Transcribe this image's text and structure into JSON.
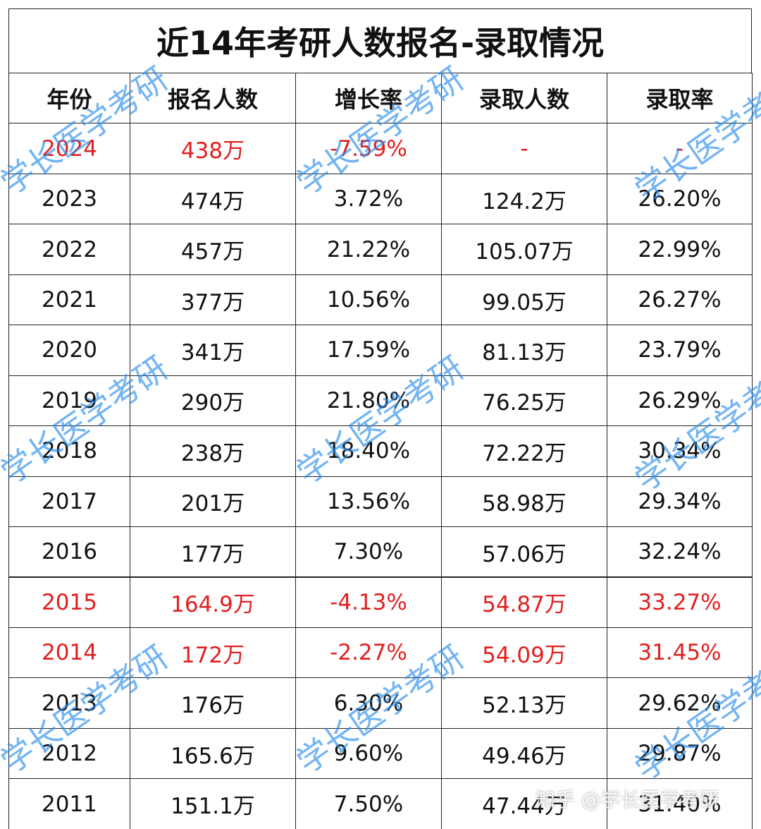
{
  "title": "近14年考研人数报名-录取情况",
  "table": {
    "header": [
      "年份",
      "报名人数",
      "增长率",
      "录取人数",
      "录取率"
    ],
    "rows": [
      [
        "2024",
        "438万",
        "-7.59%",
        "-",
        "-"
      ],
      [
        "2023",
        "474万",
        "3.72%",
        "124.2万",
        "26.20%"
      ],
      [
        "2022",
        "457万",
        "21.22%",
        "105.07万",
        "22.99%"
      ],
      [
        "2021",
        "377万",
        "10.56%",
        "99.05万",
        "26.27%"
      ],
      [
        "2020",
        "341万",
        "17.59%",
        "81.13万",
        "23.79%"
      ],
      [
        "2019",
        "290万",
        "21.80%",
        "76.25万",
        "26.29%"
      ],
      [
        "2018",
        "238万",
        "18.40%",
        "72.22万",
        "30.34%"
      ],
      [
        "2017",
        "201万",
        "13.56%",
        "58.98万",
        "29.34%"
      ],
      [
        "2016",
        "177万",
        "7.30%",
        "57.06万",
        "32.24%"
      ],
      [
        "2015",
        "164.9万",
        "-4.13%",
        "54.87万",
        "33.27%"
      ],
      [
        "2014",
        "172万",
        "-2.27%",
        "54.09万",
        "31.45%"
      ],
      [
        "2013",
        "176万",
        "6.30%",
        "52.13万",
        "29.62%"
      ],
      [
        "2012",
        "165.6万",
        "9.60%",
        "49.46万",
        "29.87%"
      ],
      [
        "2011",
        "151.1万",
        "7.50%",
        "47.44万",
        "31.40%"
      ]
    ],
    "highlighted_rows": [
      0,
      9,
      10
    ]
  },
  "watermark": "学长医学考研",
  "footer_watermark": "知乎 @学长医学考研"
}
